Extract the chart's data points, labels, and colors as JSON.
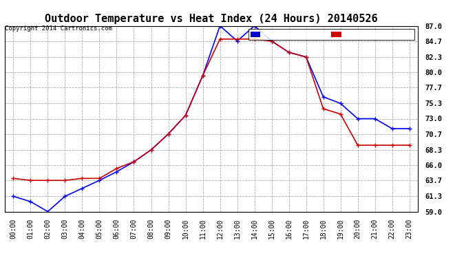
{
  "title": "Outdoor Temperature vs Heat Index (24 Hours) 20140526",
  "copyright": "Copyright 2014 Cartronics.com",
  "hours": [
    "00:00",
    "01:00",
    "02:00",
    "03:00",
    "04:00",
    "05:00",
    "06:00",
    "07:00",
    "08:00",
    "09:00",
    "10:00",
    "11:00",
    "12:00",
    "13:00",
    "14:00",
    "15:00",
    "16:00",
    "17:00",
    "18:00",
    "19:00",
    "20:00",
    "21:00",
    "22:00",
    "23:00"
  ],
  "heat_index": [
    61.3,
    60.5,
    59.0,
    61.3,
    62.5,
    63.7,
    65.0,
    66.5,
    68.3,
    70.7,
    73.5,
    79.5,
    87.0,
    84.7,
    87.0,
    84.7,
    83.0,
    82.3,
    76.3,
    75.3,
    73.0,
    73.0,
    71.5,
    71.5
  ],
  "temperature": [
    64.0,
    63.7,
    63.7,
    63.7,
    64.0,
    64.0,
    65.5,
    66.5,
    68.3,
    70.7,
    73.5,
    79.5,
    85.0,
    85.0,
    85.0,
    84.7,
    83.0,
    82.3,
    74.5,
    73.7,
    69.0,
    69.0,
    69.0,
    69.0
  ],
  "ylim": [
    59.0,
    87.0
  ],
  "yticks": [
    59.0,
    61.3,
    63.7,
    66.0,
    68.3,
    70.7,
    73.0,
    75.3,
    77.7,
    80.0,
    82.3,
    84.7,
    87.0
  ],
  "heat_index_color": "#0000ff",
  "temperature_color": "#cc0000",
  "background_color": "#ffffff",
  "grid_color": "#aaaaaa",
  "legend_hi_bg": "#0000cc",
  "legend_temp_bg": "#cc0000"
}
